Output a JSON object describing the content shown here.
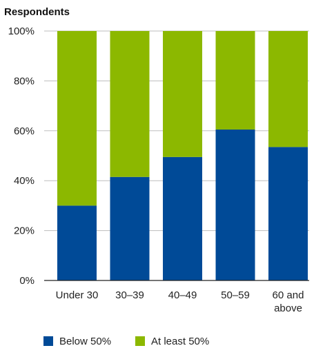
{
  "chart_data": {
    "type": "bar",
    "stacked": true,
    "ylabel": "Respondents",
    "ylim": [
      0,
      100
    ],
    "y_ticks": [
      0,
      20,
      40,
      60,
      80,
      100
    ],
    "y_tick_labels": [
      "0%",
      "20%",
      "40%",
      "60%",
      "80%",
      "100%"
    ],
    "categories": [
      [
        "Under 30"
      ],
      [
        "30–39"
      ],
      [
        "40–49"
      ],
      [
        "50–59"
      ],
      [
        "60 and",
        "above"
      ]
    ],
    "series": [
      {
        "name": "Below 50%",
        "color": "#004a97",
        "values": [
          30,
          41.5,
          49.5,
          60.5,
          53.5
        ]
      },
      {
        "name": "At least 50%",
        "color": "#8cb800",
        "values": [
          70,
          58.5,
          50.5,
          39.5,
          46.5
        ]
      }
    ],
    "grid": true,
    "legend_position": "bottom-left"
  }
}
